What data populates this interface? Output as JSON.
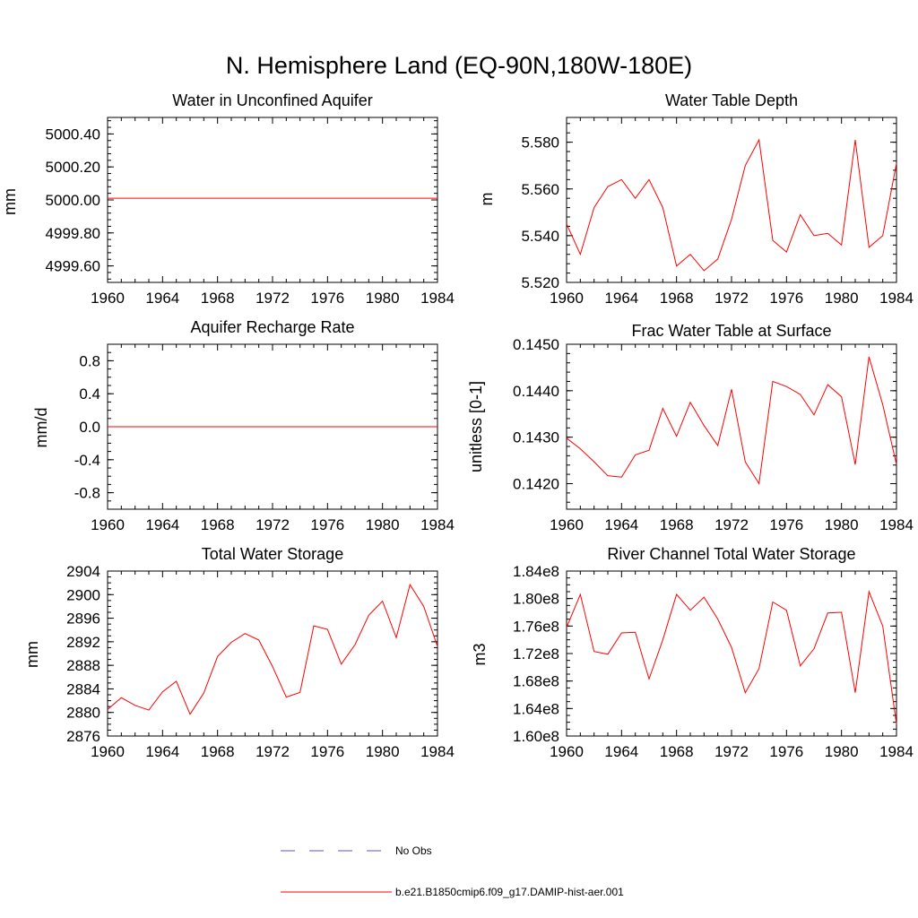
{
  "title": "N. Hemisphere Land (EQ-90N,180W-180E)",
  "colors": {
    "model": "#ff0000",
    "obs": "#5a5ab4",
    "axis": "#000000"
  },
  "legend": {
    "obs_label": "No Obs",
    "model_label": "b.e21.B1850cmip6.f09_g17.DAMIP-hist-aer.001"
  },
  "years": [
    1960,
    1961,
    1962,
    1963,
    1964,
    1965,
    1966,
    1967,
    1968,
    1969,
    1970,
    1971,
    1972,
    1973,
    1974,
    1975,
    1976,
    1977,
    1978,
    1979,
    1980,
    1981,
    1982,
    1983,
    1984
  ],
  "chart_data": [
    {
      "type": "line",
      "title": "Water in Unconfined Aquifer",
      "ylabel": "mm",
      "xlim": [
        1960,
        1984
      ],
      "ylim": [
        4999.5,
        5000.5
      ],
      "xticks": [
        1960,
        1964,
        1968,
        1972,
        1976,
        1980,
        1984
      ],
      "xticklabels": [
        "1960",
        "1964",
        "1968",
        "1972",
        "1976",
        "1980",
        "1984"
      ],
      "yticks": [
        4999.6,
        4999.8,
        5000.0,
        5000.2,
        5000.4
      ],
      "yticklabels": [
        "4999.60",
        "4999.80",
        "5000.00",
        "5000.20",
        "5000.40"
      ],
      "yminor": 5,
      "series": [
        {
          "values": [
            5000.01,
            5000.01,
            5000.01,
            5000.01,
            5000.01,
            5000.01,
            5000.01,
            5000.01,
            5000.01,
            5000.01,
            5000.01,
            5000.01,
            5000.01,
            5000.01,
            5000.01,
            5000.01,
            5000.01,
            5000.01,
            5000.01,
            5000.01,
            5000.01,
            5000.01,
            5000.01,
            5000.01,
            5000.01
          ]
        }
      ]
    },
    {
      "type": "line",
      "title": "Water Table Depth",
      "ylabel": "m",
      "xlim": [
        1960,
        1984
      ],
      "ylim": [
        5.52,
        5.5906
      ],
      "xticks": [
        1960,
        1964,
        1968,
        1972,
        1976,
        1980,
        1984
      ],
      "xticklabels": [
        "1960",
        "1964",
        "1968",
        "1972",
        "1976",
        "1980",
        "1984"
      ],
      "yticks": [
        5.52,
        5.54,
        5.56,
        5.58
      ],
      "yticklabels": [
        "5.520",
        "5.540",
        "5.560",
        "5.580"
      ],
      "yminor": 5,
      "series": [
        {
          "values": [
            5.545,
            5.532,
            5.552,
            5.561,
            5.564,
            5.556,
            5.564,
            5.552,
            5.527,
            5.532,
            5.525,
            5.53,
            5.547,
            5.57,
            5.581,
            5.538,
            5.533,
            5.549,
            5.54,
            5.541,
            5.536,
            5.581,
            5.535,
            5.54,
            5.571
          ]
        }
      ]
    },
    {
      "type": "line",
      "title": "Aquifer Recharge Rate",
      "ylabel": "mm/d",
      "xlim": [
        1960,
        1984
      ],
      "ylim": [
        -1.0,
        1.0
      ],
      "xticks": [
        1960,
        1964,
        1968,
        1972,
        1976,
        1980,
        1984
      ],
      "xticklabels": [
        "1960",
        "1964",
        "1968",
        "1972",
        "1976",
        "1980",
        "1984"
      ],
      "yticks": [
        -0.8,
        -0.4,
        0.0,
        0.4,
        0.8
      ],
      "yticklabels": [
        "-0.8",
        "-0.4",
        "0.0",
        "0.4",
        "0.8"
      ],
      "yminor": 4,
      "series": [
        {
          "values": [
            0,
            0,
            0,
            0,
            0,
            0,
            0,
            0,
            0,
            0,
            0,
            0,
            0,
            0,
            0,
            0,
            0,
            0,
            0,
            0,
            0,
            0,
            0,
            0,
            0
          ]
        }
      ]
    },
    {
      "type": "line",
      "title": "Frac Water Table at Surface",
      "ylabel": "unitless [0-1]",
      "xlim": [
        1960,
        1984
      ],
      "ylim": [
        0.14145,
        0.145
      ],
      "xticks": [
        1960,
        1964,
        1968,
        1972,
        1976,
        1980,
        1984
      ],
      "xticklabels": [
        "1960",
        "1964",
        "1968",
        "1972",
        "1976",
        "1980",
        "1984"
      ],
      "yticks": [
        0.142,
        0.143,
        0.144,
        0.145
      ],
      "yticklabels": [
        "0.1420",
        "0.1430",
        "0.1440",
        "0.1450"
      ],
      "yminor": 5,
      "series": [
        {
          "values": [
            0.14298,
            0.14275,
            0.14247,
            0.14217,
            0.14214,
            0.14262,
            0.14272,
            0.14362,
            0.14302,
            0.14375,
            0.14325,
            0.14282,
            0.14403,
            0.14247,
            0.142,
            0.1442,
            0.14409,
            0.14392,
            0.14348,
            0.14413,
            0.14387,
            0.14241,
            0.14473,
            0.1437,
            0.14241
          ]
        }
      ]
    },
    {
      "type": "line",
      "title": "Total Water Storage",
      "ylabel": "mm",
      "xlim": [
        1960,
        1984
      ],
      "ylim": [
        2876,
        2904
      ],
      "xticks": [
        1960,
        1964,
        1968,
        1972,
        1976,
        1980,
        1984
      ],
      "xticklabels": [
        "1960",
        "1964",
        "1968",
        "1972",
        "1976",
        "1980",
        "1984"
      ],
      "yticks": [
        2876,
        2880,
        2884,
        2888,
        2892,
        2896,
        2900,
        2904
      ],
      "yticklabels": [
        "2876",
        "2880",
        "2884",
        "2888",
        "2892",
        "2896",
        "2900",
        "2904"
      ],
      "yminor": 4,
      "series": [
        {
          "values": [
            2880.5,
            2882.5,
            2881.2,
            2880.4,
            2883.5,
            2885.3,
            2879.7,
            2883.3,
            2889.5,
            2891.9,
            2893.4,
            2892.3,
            2887.8,
            2882.6,
            2883.4,
            2894.7,
            2894.1,
            2888.2,
            2891.5,
            2896.5,
            2898.9,
            2892.7,
            2901.7,
            2898.0,
            2891.2
          ]
        }
      ]
    },
    {
      "type": "line",
      "title": "River Channel Total Water Storage",
      "ylabel": "m3",
      "xlim": [
        1960,
        1984
      ],
      "ylim": [
        160000000,
        184000000
      ],
      "xticks": [
        1960,
        1964,
        1968,
        1972,
        1976,
        1980,
        1984
      ],
      "xticklabels": [
        "1960",
        "1964",
        "1968",
        "1972",
        "1976",
        "1980",
        "1984"
      ],
      "yticks": [
        160000000,
        164000000,
        168000000,
        172000000,
        176000000,
        180000000,
        184000000
      ],
      "yticklabels": [
        "1.60e8",
        "1.64e8",
        "1.68e8",
        "1.72e8",
        "1.76e8",
        "1.80e8",
        "1.84e8"
      ],
      "yminor": 4,
      "series": [
        {
          "values": [
            175800000,
            180600000,
            172300000,
            171900000,
            175000000,
            175100000,
            168300000,
            174000000,
            180600000,
            178300000,
            180200000,
            177000000,
            172900000,
            166300000,
            169800000,
            179500000,
            178300000,
            170200000,
            172700000,
            177900000,
            178000000,
            166300000,
            181000000,
            176000000,
            161700000
          ]
        }
      ]
    }
  ]
}
